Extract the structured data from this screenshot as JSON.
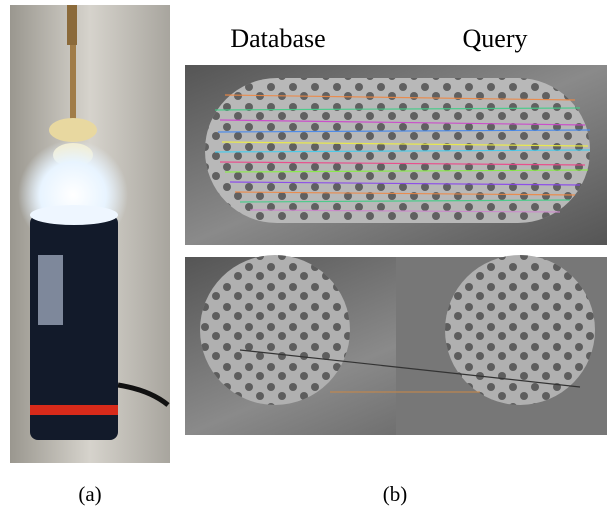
{
  "figure": {
    "column_headers": {
      "database": "Database",
      "query": "Query"
    },
    "captions": {
      "a": "(a)",
      "b": "(b)"
    }
  }
}
